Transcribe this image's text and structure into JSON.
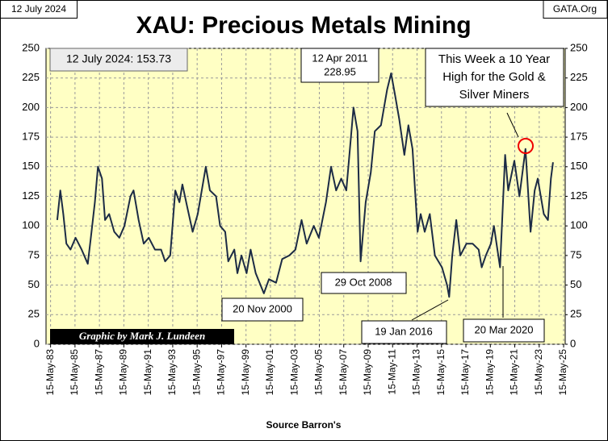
{
  "chart_data": {
    "type": "line",
    "title": "XAU: Precious Metals Mining",
    "date_label": "12 July 2024",
    "source_label": "GATA.Org",
    "credit": "Graphic by Mark J. Lundeen",
    "x_label": "Source Barron's",
    "annotations": {
      "latest": "12 July 2024: 153.73",
      "peak": [
        "12 Apr 2011",
        "228.95"
      ],
      "high": [
        "This Week a 10 Year",
        "High for the Gold &",
        "Silver Miners"
      ],
      "low2008": "29 Oct 2008",
      "low2000": "20 Nov 2000",
      "low2016": "19 Jan 2016",
      "low2020": "20 Mar 2020"
    },
    "x": [
      "1983-12",
      "1984-03",
      "1984-06",
      "1984-09",
      "1985-01",
      "1985-06",
      "1985-12",
      "1986-06",
      "1986-09",
      "1987-01",
      "1987-04",
      "1987-08",
      "1987-11",
      "1988-03",
      "1988-08",
      "1989-01",
      "1989-06",
      "1989-12",
      "1990-03",
      "1990-08",
      "1991-01",
      "1991-06",
      "1991-12",
      "1992-06",
      "1992-10",
      "1993-03",
      "1993-08",
      "1993-12",
      "1994-03",
      "1994-08",
      "1995-01",
      "1995-06",
      "1996-02",
      "1996-06",
      "1996-12",
      "1997-04",
      "1997-09",
      "1997-12",
      "1998-06",
      "1998-09",
      "1999-01",
      "1999-06",
      "1999-10",
      "2000-03",
      "2000-11",
      "2001-04",
      "2001-11",
      "2002-05",
      "2002-12",
      "2003-06",
      "2003-12",
      "2004-05",
      "2004-12",
      "2005-05",
      "2005-12",
      "2006-05",
      "2006-10",
      "2007-03",
      "2007-08",
      "2007-12",
      "2008-03",
      "2008-07",
      "2008-10",
      "2009-03",
      "2009-08",
      "2009-12",
      "2010-06",
      "2010-12",
      "2011-04",
      "2011-08",
      "2011-12",
      "2012-05",
      "2012-09",
      "2013-01",
      "2013-06",
      "2013-09",
      "2014-01",
      "2014-06",
      "2014-11",
      "2015-06",
      "2015-11",
      "2016-01",
      "2016-04",
      "2016-08",
      "2016-12",
      "2017-06",
      "2017-12",
      "2018-06",
      "2018-09",
      "2019-01",
      "2019-06",
      "2019-09",
      "2020-03",
      "2020-08",
      "2020-11",
      "2021-05",
      "2021-10",
      "2022-04",
      "2022-09",
      "2023-01",
      "2023-04",
      "2023-10",
      "2024-02",
      "2024-05",
      "2024-07"
    ],
    "series": [
      {
        "name": "XAU",
        "color": "#1c2b45",
        "values": [
          105,
          130,
          110,
          85,
          80,
          90,
          80,
          68,
          90,
          120,
          150,
          140,
          105,
          110,
          95,
          90,
          100,
          125,
          130,
          105,
          85,
          90,
          80,
          80,
          70,
          75,
          130,
          120,
          135,
          115,
          95,
          110,
          150,
          130,
          125,
          100,
          95,
          70,
          80,
          60,
          75,
          60,
          80,
          60,
          43,
          55,
          52,
          72,
          75,
          80,
          105,
          85,
          100,
          90,
          120,
          150,
          130,
          140,
          130,
          170,
          200,
          180,
          70,
          120,
          145,
          180,
          185,
          215,
          228.95,
          210,
          190,
          160,
          185,
          165,
          95,
          110,
          95,
          110,
          75,
          65,
          50,
          40,
          75,
          105,
          75,
          85,
          85,
          80,
          65,
          75,
          85,
          100,
          65,
          160,
          130,
          155,
          125,
          165,
          95,
          130,
          140,
          110,
          105,
          140,
          153.73
        ]
      }
    ],
    "xlim": [
      "1983-01-01",
      "2025-07-01"
    ],
    "xticks": [
      {
        "value": "1983-05-15",
        "label": "15-May-83"
      },
      {
        "value": "1985-05-15",
        "label": "15-May-85"
      },
      {
        "value": "1987-05-15",
        "label": "15-May-87"
      },
      {
        "value": "1989-05-15",
        "label": "15-May-89"
      },
      {
        "value": "1991-05-15",
        "label": "15-May-91"
      },
      {
        "value": "1993-05-15",
        "label": "15-May-93"
      },
      {
        "value": "1995-05-15",
        "label": "15-May-95"
      },
      {
        "value": "1997-05-15",
        "label": "15-May-97"
      },
      {
        "value": "1999-05-15",
        "label": "15-May-99"
      },
      {
        "value": "2001-05-15",
        "label": "15-May-01"
      },
      {
        "value": "2003-05-15",
        "label": "15-May-03"
      },
      {
        "value": "2005-05-15",
        "label": "15-May-05"
      },
      {
        "value": "2007-05-15",
        "label": "15-May-07"
      },
      {
        "value": "2009-05-15",
        "label": "15-May-09"
      },
      {
        "value": "2011-05-15",
        "label": "15-May-11"
      },
      {
        "value": "2013-05-15",
        "label": "15-May-13"
      },
      {
        "value": "2015-05-15",
        "label": "15-May-15"
      },
      {
        "value": "2017-05-15",
        "label": "15-May-17"
      },
      {
        "value": "2019-05-15",
        "label": "15-May-19"
      },
      {
        "value": "2021-05-15",
        "label": "15-May-21"
      },
      {
        "value": "2023-05-15",
        "label": "15-May-23"
      },
      {
        "value": "2025-05-15",
        "label": "15-May-25"
      }
    ],
    "ylim": [
      0,
      250
    ],
    "yticks": [
      0,
      25,
      50,
      75,
      100,
      125,
      150,
      175,
      200,
      225,
      250
    ],
    "y2lim": [
      0,
      250
    ],
    "y2ticks": [
      0,
      25,
      50,
      75,
      100,
      125,
      150,
      175,
      200,
      225,
      250
    ],
    "grid": true
  }
}
